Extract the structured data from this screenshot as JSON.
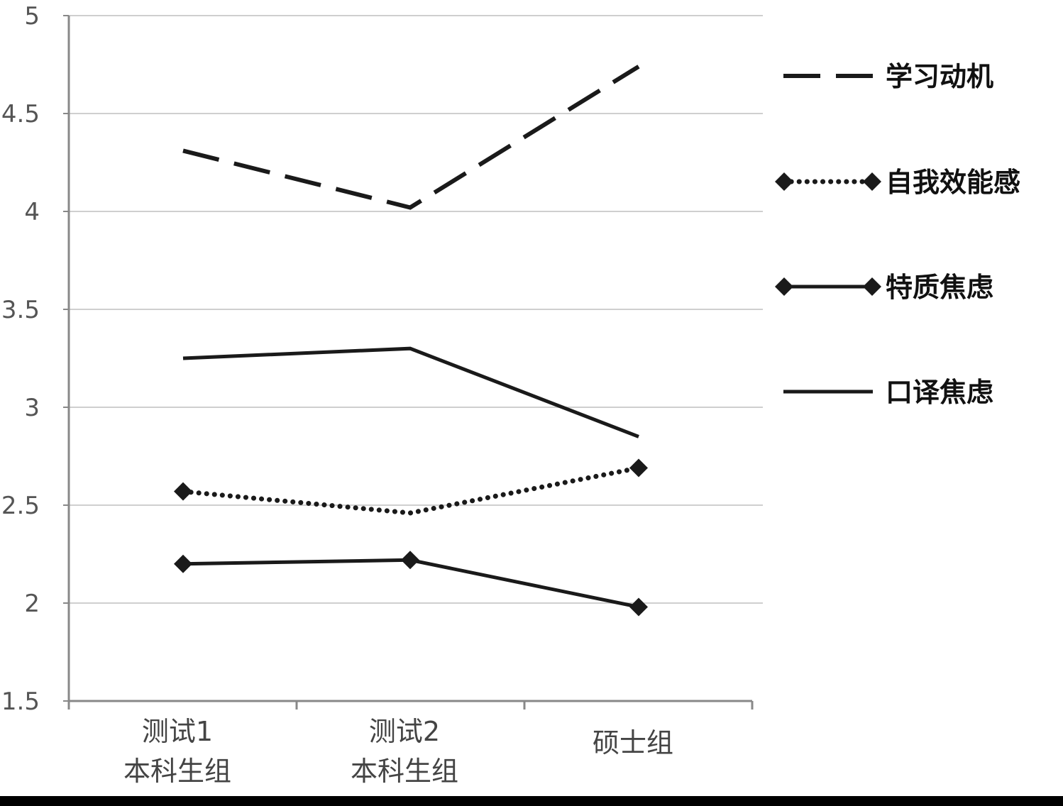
{
  "chart_data": {
    "type": "line",
    "categories": [
      [
        "测试1",
        "本科生组"
      ],
      [
        "测试2",
        "本科生组"
      ],
      [
        "硕士组"
      ]
    ],
    "ylim": [
      1.5,
      5
    ],
    "yticks": [
      "1.5",
      "2",
      "2.5",
      "3",
      "3.5",
      "4",
      "4.5",
      "5"
    ],
    "grid": true,
    "legend_position": "right",
    "series": [
      {
        "name": "学习动机",
        "values": [
          4.31,
          4.02,
          4.74
        ],
        "style": "dashed",
        "marker": "none",
        "color": "#1a1a1a"
      },
      {
        "name": "自我效能感",
        "values": [
          2.57,
          2.46,
          2.69
        ],
        "style": "dotted",
        "marker": "diamond",
        "color": "#1a1a1a"
      },
      {
        "name": "特质焦虑",
        "values": [
          2.2,
          2.22,
          1.98
        ],
        "style": "solid",
        "marker": "diamond",
        "color": "#1a1a1a"
      },
      {
        "name": "口译焦虑",
        "values": [
          3.25,
          3.3,
          2.85
        ],
        "style": "solid",
        "marker": "none",
        "color": "#1a1a1a"
      }
    ]
  }
}
